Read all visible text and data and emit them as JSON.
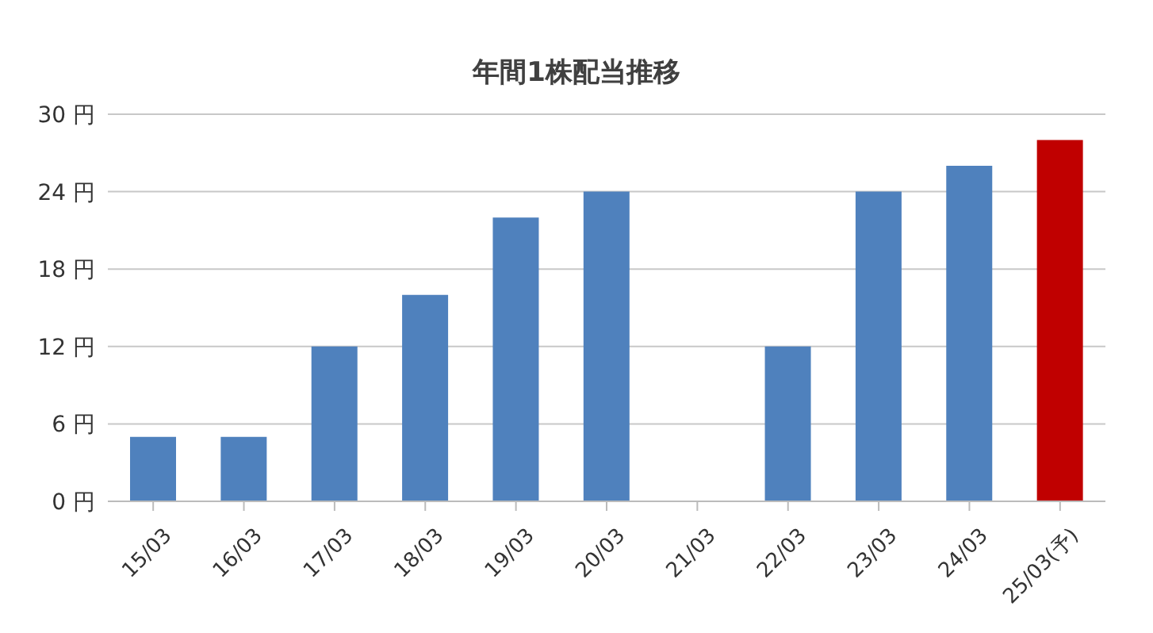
{
  "chart_data": {
    "type": "bar",
    "title": "年間1株配当推移",
    "categories": [
      "15/03",
      "16/03",
      "17/03",
      "18/03",
      "19/03",
      "20/03",
      "21/03",
      "22/03",
      "23/03",
      "24/03",
      "25/03(予)"
    ],
    "values": [
      5,
      5,
      12,
      16,
      22,
      24,
      0,
      12,
      24,
      26,
      28
    ],
    "colors": [
      "#4f81bd",
      "#4f81bd",
      "#4f81bd",
      "#4f81bd",
      "#4f81bd",
      "#4f81bd",
      "#4f81bd",
      "#4f81bd",
      "#4f81bd",
      "#4f81bd",
      "#c00000"
    ],
    "ylim": [
      0,
      30
    ],
    "yticks": [
      {
        "value": 0,
        "label": "0 円"
      },
      {
        "value": 6,
        "label": "6 円"
      },
      {
        "value": 12,
        "label": "12 円"
      },
      {
        "value": 18,
        "label": "18 円"
      },
      {
        "value": 24,
        "label": "24 円"
      },
      {
        "value": 30,
        "label": "30 円"
      }
    ],
    "grid": "y"
  }
}
